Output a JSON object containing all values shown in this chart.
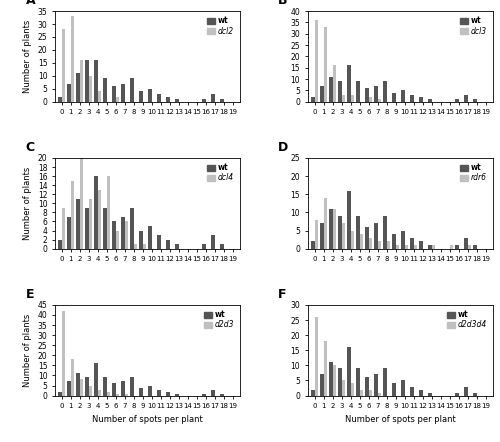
{
  "panels": [
    {
      "label": "A",
      "legend_mut": "dcl2",
      "ylim": 35,
      "yticks": [
        0,
        5,
        10,
        15,
        20,
        25,
        30,
        35
      ],
      "wt": [
        2,
        7,
        11,
        16,
        16,
        9,
        6,
        7,
        9,
        4,
        5,
        3,
        2,
        1,
        0,
        0,
        1,
        3,
        1,
        0
      ],
      "mut": [
        28,
        33,
        16,
        10,
        4,
        0,
        2,
        0,
        0,
        0,
        0,
        0,
        0,
        0,
        0,
        0,
        0,
        0,
        0,
        0
      ]
    },
    {
      "label": "B",
      "legend_mut": "dcl3",
      "ylim": 40,
      "yticks": [
        0,
        5,
        10,
        15,
        20,
        25,
        30,
        35,
        40
      ],
      "wt": [
        2,
        7,
        11,
        9,
        16,
        9,
        6,
        7,
        9,
        4,
        5,
        3,
        2,
        1,
        0,
        0,
        1,
        3,
        1,
        0
      ],
      "mut": [
        36,
        33,
        16,
        3,
        3,
        0,
        2,
        1,
        0,
        0,
        0,
        0,
        0,
        0,
        0,
        0,
        0,
        0,
        0,
        0
      ]
    },
    {
      "label": "C",
      "legend_mut": "dcl4",
      "ylim": 20,
      "yticks": [
        0,
        2,
        4,
        6,
        8,
        10,
        12,
        14,
        16,
        18,
        20
      ],
      "wt": [
        2,
        7,
        11,
        9,
        16,
        9,
        6,
        7,
        9,
        4,
        5,
        3,
        2,
        1,
        0,
        0,
        1,
        3,
        1,
        0
      ],
      "mut": [
        9,
        15,
        20,
        11,
        13,
        16,
        4,
        6,
        1,
        1,
        0,
        0,
        0,
        0,
        0,
        0,
        0,
        0,
        0,
        0
      ]
    },
    {
      "label": "D",
      "legend_mut": "rdr6",
      "ylim": 25,
      "yticks": [
        0,
        5,
        10,
        15,
        20,
        25
      ],
      "wt": [
        2,
        7,
        11,
        9,
        16,
        9,
        6,
        7,
        9,
        4,
        5,
        3,
        2,
        1,
        0,
        0,
        1,
        3,
        1,
        0
      ],
      "mut": [
        8,
        14,
        11,
        7,
        5,
        4,
        3,
        2,
        2,
        1,
        1,
        1,
        0,
        1,
        0,
        1,
        0,
        1,
        0,
        0
      ]
    },
    {
      "label": "E",
      "legend_mut": "d2d3",
      "ylim": 45,
      "yticks": [
        0,
        5,
        10,
        15,
        20,
        25,
        30,
        35,
        40,
        45
      ],
      "wt": [
        2,
        7,
        11,
        9,
        16,
        9,
        6,
        7,
        9,
        4,
        5,
        3,
        2,
        1,
        0,
        0,
        1,
        3,
        1,
        0
      ],
      "mut": [
        42,
        18,
        8,
        5,
        3,
        2,
        1,
        1,
        0,
        0,
        0,
        0,
        0,
        0,
        0,
        0,
        0,
        0,
        0,
        0
      ]
    },
    {
      "label": "F",
      "legend_mut": "d2d3d4",
      "ylim": 30,
      "yticks": [
        0,
        5,
        10,
        15,
        20,
        25,
        30
      ],
      "wt": [
        2,
        7,
        11,
        9,
        16,
        9,
        6,
        7,
        9,
        4,
        5,
        3,
        2,
        1,
        0,
        0,
        1,
        3,
        1,
        0
      ],
      "mut": [
        26,
        18,
        10,
        5,
        4,
        2,
        2,
        1,
        0,
        0,
        0,
        0,
        0,
        0,
        0,
        0,
        0,
        0,
        0,
        0
      ]
    }
  ],
  "x_labels": [
    "0",
    "1",
    "2",
    "3",
    "4",
    "5",
    "6",
    "7",
    "8",
    "9",
    "10",
    "11",
    "12",
    "13",
    "14",
    "15",
    "16",
    "17",
    "18",
    "19"
  ],
  "wt_color": "#555555",
  "mut_color": "#c0c0c0",
  "xlabel": "Number of spots per plant",
  "ylabel": "Number of plants",
  "bar_width": 0.4
}
